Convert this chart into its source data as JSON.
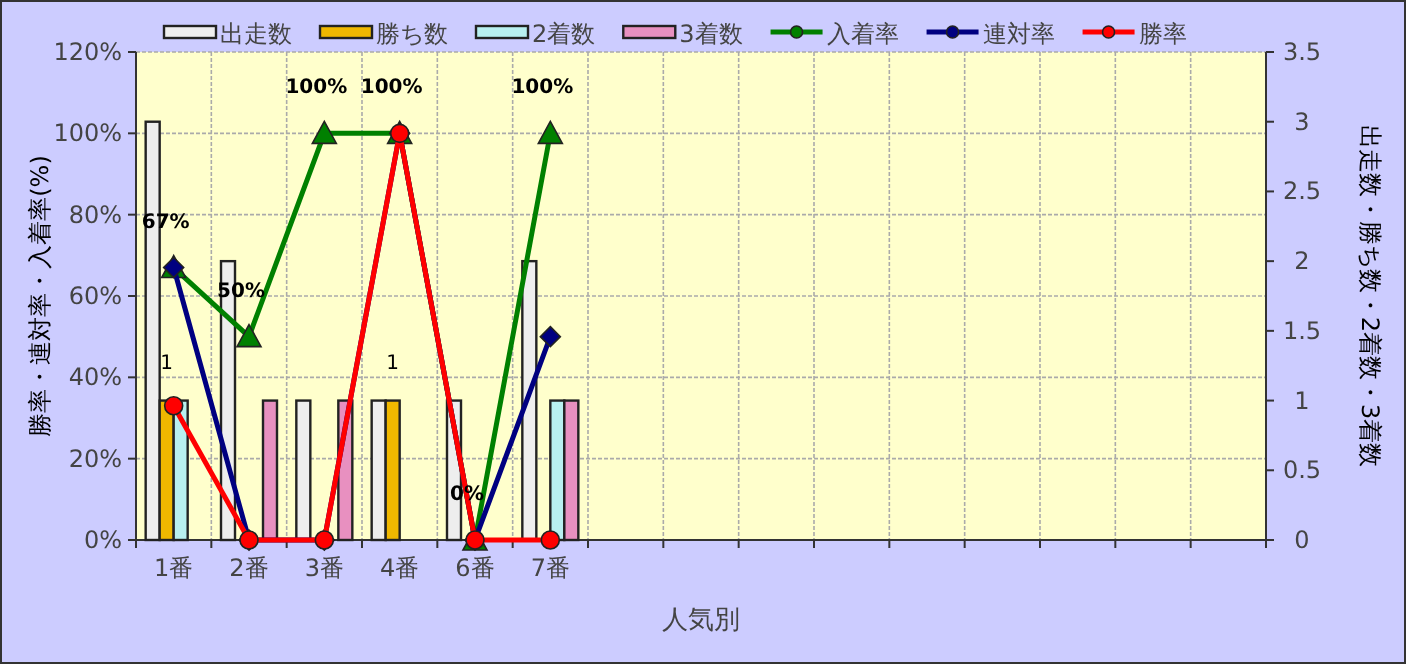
{
  "chart_data": {
    "type": "bar",
    "xlabel": "人気別",
    "ylabel": "勝率・連対率・入着率(%)",
    "y2label": "出走数・勝ち数・2着数・3着数",
    "categories": [
      "1番",
      "2番",
      "3番",
      "4番",
      "6番",
      "7番",
      null,
      null,
      null,
      null,
      null,
      null,
      null,
      null,
      null
    ],
    "series": [
      {
        "name": "出走数",
        "axis": "y2",
        "color": "#eeeeee",
        "values": [
          3,
          2,
          1,
          1,
          1,
          2,
          null,
          null,
          null,
          null,
          null,
          null,
          null,
          null,
          null
        ]
      },
      {
        "name": "勝ち数",
        "axis": "y2",
        "color": "#f0b800",
        "values": [
          1,
          0,
          0,
          1,
          0,
          0,
          null,
          null,
          null,
          null,
          null,
          null,
          null,
          null,
          null
        ],
        "value_labels": [
          "1",
          null,
          null,
          "1",
          null,
          null,
          null,
          null,
          null,
          null,
          null,
          null,
          null,
          null,
          null
        ]
      },
      {
        "name": "2着数",
        "axis": "y2",
        "color": "#b8f0f0",
        "values": [
          1,
          0,
          0,
          0,
          0,
          1,
          null,
          null,
          null,
          null,
          null,
          null,
          null,
          null,
          null
        ]
      },
      {
        "name": "3着数",
        "axis": "y2",
        "color": "#e890c0",
        "values": [
          0,
          1,
          1,
          0,
          0,
          1,
          null,
          null,
          null,
          null,
          null,
          null,
          null,
          null,
          null
        ]
      },
      {
        "name": "入着率",
        "type": "line",
        "marker": "triangle",
        "color": "#008000",
        "values": [
          67,
          50,
          100,
          100,
          0,
          100,
          null,
          null,
          null,
          null,
          null,
          null,
          null,
          null,
          null
        ],
        "value_labels": [
          "67%",
          "50%",
          "100%",
          "100%",
          "0%",
          "100%",
          null,
          null,
          null,
          null,
          null,
          null,
          null,
          null,
          null
        ]
      },
      {
        "name": "連対率",
        "type": "line",
        "marker": "diamond",
        "color": "#000080",
        "values": [
          67,
          0,
          0,
          100,
          0,
          50,
          null,
          null,
          null,
          null,
          null,
          null,
          null,
          null,
          null
        ]
      },
      {
        "name": "勝率",
        "type": "line",
        "marker": "circle",
        "color": "#ff0000",
        "values": [
          33,
          0,
          0,
          100,
          0,
          0,
          null,
          null,
          null,
          null,
          null,
          null,
          null,
          null,
          null
        ]
      }
    ],
    "ylim": [
      0,
      120
    ],
    "yticks": [
      {
        "value": 0,
        "label": "0%"
      },
      {
        "value": 20,
        "label": "20%"
      },
      {
        "value": 40,
        "label": "40%"
      },
      {
        "value": 60,
        "label": "60%"
      },
      {
        "value": 80,
        "label": "80%"
      },
      {
        "value": 100,
        "label": "100%"
      },
      {
        "value": 120,
        "label": "120%"
      }
    ],
    "y2lim": [
      0,
      3.5
    ],
    "y2ticks": [
      0,
      0.5,
      1,
      1.5,
      2,
      2.5,
      3,
      3.5
    ],
    "grid": true,
    "legend": "top"
  }
}
